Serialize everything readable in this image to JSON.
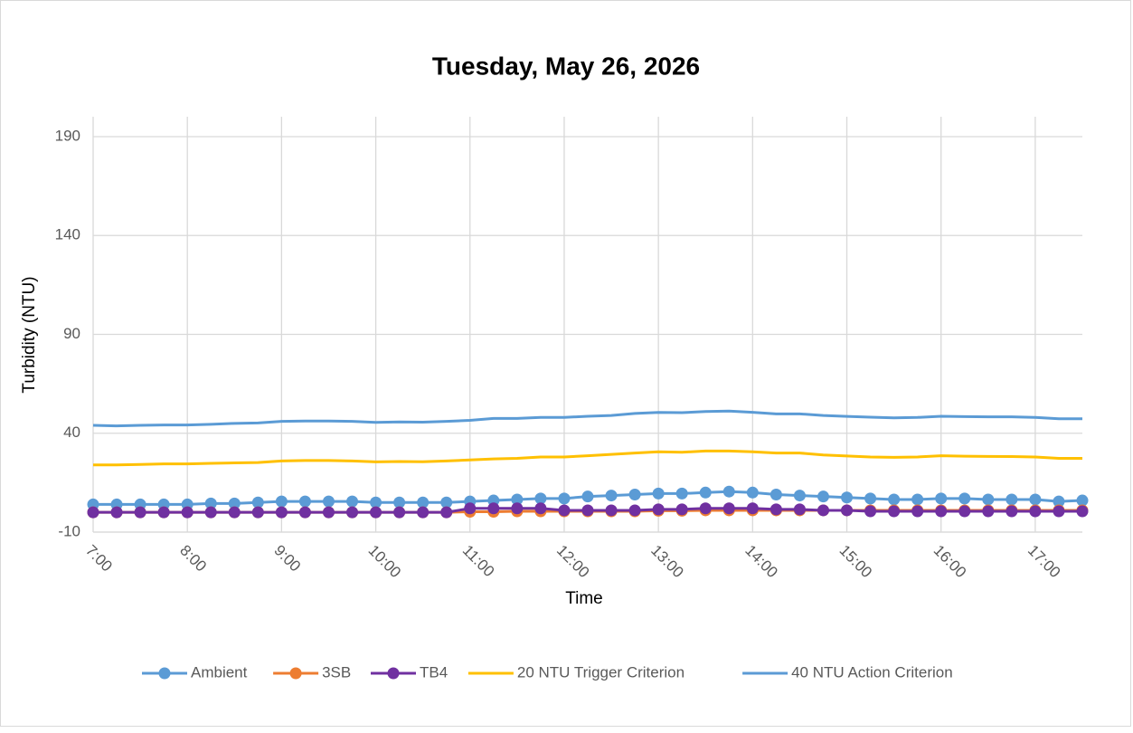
{
  "chart_data": {
    "type": "line",
    "title": "Tuesday, May 26, 2026",
    "x_label": "Time",
    "y_label": "Turbidity (NTU)",
    "categories": [
      "7:00",
      null,
      null,
      null,
      "8:00",
      null,
      null,
      null,
      "9:00",
      null,
      null,
      null,
      "10:00",
      null,
      null,
      null,
      "11:00",
      null,
      null,
      null,
      "12:00",
      null,
      null,
      null,
      "13:00",
      null,
      null,
      null,
      "14:00",
      null,
      null,
      null,
      "15:00",
      null,
      null,
      null,
      "16:00",
      null,
      null,
      null,
      "17:00",
      null,
      null
    ],
    "ylim": [
      -10,
      190
    ],
    "yticks": [
      -10,
      40,
      90,
      140,
      190
    ],
    "grid": true,
    "legend": "bottom",
    "series": [
      {
        "name": "Ambient",
        "color": "#5b9bd5",
        "marker": true,
        "values": [
          4,
          4,
          4,
          4,
          4,
          4.5,
          4.5,
          5,
          5.5,
          5.5,
          5.5,
          5.5,
          5,
          5,
          5,
          5,
          5.5,
          6,
          6.5,
          7,
          7,
          8,
          8.5,
          9,
          9.5,
          9.5,
          10,
          10.5,
          10,
          9,
          8.5,
          8,
          7.5,
          7,
          6.5,
          6.5,
          7,
          7,
          6.5,
          6.5,
          6.5,
          5.5,
          6
        ]
      },
      {
        "name": "3SB",
        "color": "#ed7d31",
        "marker": true,
        "values": [
          0,
          0,
          0,
          0,
          0,
          0,
          0,
          0,
          0,
          0,
          0,
          0,
          0,
          0,
          0,
          0,
          0.3,
          0.3,
          0.5,
          0.5,
          0.5,
          0.5,
          0.5,
          0.5,
          0.8,
          0.8,
          1,
          1,
          1,
          1,
          1,
          1,
          1,
          1,
          1,
          1,
          1,
          1,
          1,
          1,
          1,
          1,
          1
        ]
      },
      {
        "name": "TB4",
        "color": "#7030a0",
        "marker": true,
        "values": [
          0,
          0,
          0,
          0,
          0,
          0,
          0,
          0,
          0,
          0,
          0,
          0,
          0,
          0,
          0,
          0,
          2,
          2,
          2,
          2,
          1,
          1,
          1,
          1,
          1.5,
          1.5,
          2,
          2,
          2,
          1.5,
          1.5,
          1,
          1,
          0.5,
          0.5,
          0.5,
          0.5,
          0.5,
          0.5,
          0.5,
          0.5,
          0.5,
          0.5
        ]
      },
      {
        "name": "20 NTU Trigger Criterion",
        "color": "#ffc000",
        "marker": false,
        "values": [
          24,
          24,
          24.2,
          24.5,
          24.5,
          24.8,
          25,
          25.2,
          26,
          26.2,
          26.2,
          26,
          25.5,
          25.7,
          25.6,
          26,
          26.5,
          27,
          27.3,
          28,
          28,
          28.6,
          29.3,
          30,
          30.6,
          30.4,
          31,
          31,
          30.6,
          30,
          30,
          29,
          28.5,
          28,
          27.8,
          28,
          28.6,
          28.4,
          28.3,
          28.2,
          28,
          27.3,
          27.3
        ]
      },
      {
        "name": "40 NTU Action Criterion",
        "color": "#5b9bd5",
        "marker": false,
        "values": [
          44,
          43.7,
          44,
          44.2,
          44.2,
          44.5,
          45,
          45.2,
          46,
          46.2,
          46.2,
          46,
          45.5,
          45.7,
          45.6,
          46,
          46.5,
          47.5,
          47.5,
          48,
          48,
          48.6,
          49,
          50,
          50.5,
          50.4,
          51,
          51.2,
          50.6,
          49.8,
          49.8,
          49,
          48.5,
          48.1,
          47.8,
          48,
          48.6,
          48.4,
          48.3,
          48.3,
          48,
          47.3,
          47.3
        ]
      }
    ]
  }
}
